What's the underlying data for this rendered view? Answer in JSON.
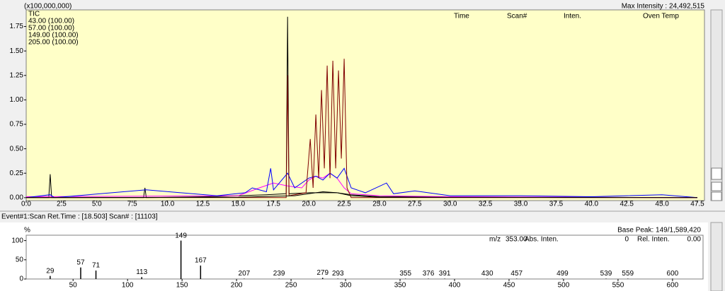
{
  "header": {
    "scale_note": "(x100,000,000)",
    "max_intensity": "Max Intensity : 24,492,515",
    "columns": [
      "Time",
      "Scan#",
      "Inten.",
      "Oven Temp"
    ]
  },
  "event": [
    "Event#1:Scan",
    "Ret.Time : [18.503]",
    "Scan# : [11103]"
  ],
  "spectrum_info": {
    "base_peak": "Base Peak: 149/1,589,420",
    "fields": [
      "m/z",
      "353.00",
      "Abs. Inten.",
      "0",
      "Rel. Inten.",
      "0.00"
    ]
  },
  "chart_data": [
    {
      "type": "line",
      "xlim": [
        0,
        48
      ],
      "ylim": [
        -0.03,
        1.92
      ],
      "xticks": [
        {
          "value": 0,
          "label": "0.0"
        },
        {
          "value": 2.5,
          "label": "2.5"
        },
        {
          "value": 5,
          "label": "5.0"
        },
        {
          "value": 7.5,
          "label": "7.5"
        },
        {
          "value": 10,
          "label": "10.0"
        },
        {
          "value": 12.5,
          "label": "12.5"
        },
        {
          "value": 15,
          "label": "15.0"
        },
        {
          "value": 17.5,
          "label": "17.5"
        },
        {
          "value": 20,
          "label": "20.0"
        },
        {
          "value": 22.5,
          "label": "22.5"
        },
        {
          "value": 25,
          "label": "25.0"
        },
        {
          "value": 27.5,
          "label": "27.5"
        },
        {
          "value": 30,
          "label": "30.0"
        },
        {
          "value": 32.5,
          "label": "32.5"
        },
        {
          "value": 35,
          "label": "35.0"
        },
        {
          "value": 37.5,
          "label": "37.5"
        },
        {
          "value": 40,
          "label": "40.0"
        },
        {
          "value": 42.5,
          "label": "42.5"
        },
        {
          "value": 45,
          "label": "45.0"
        },
        {
          "value": 47.5,
          "label": "47.5"
        }
      ],
      "yticks": [
        {
          "value": 0,
          "label": "0.00"
        },
        {
          "value": 0.25,
          "label": "0.25"
        },
        {
          "value": 0.5,
          "label": "0.50"
        },
        {
          "value": 0.75,
          "label": "0.75"
        },
        {
          "value": 1,
          "label": "1.00"
        },
        {
          "value": 1.25,
          "label": "1.25"
        },
        {
          "value": 1.5,
          "label": "1.50"
        },
        {
          "value": 1.75,
          "label": "1.75"
        }
      ],
      "series": [
        {
          "name": "TIC",
          "color": "#000000",
          "x": [
            0,
            1.6,
            1.7,
            1.8,
            8.3,
            8.4,
            8.5,
            13,
            15,
            17,
            18.4,
            18.5,
            18.6,
            20,
            22,
            23,
            25,
            47.5
          ],
          "values": [
            0,
            0,
            0.24,
            0,
            0,
            0.1,
            0,
            0.01,
            0.02,
            0.03,
            0.04,
            1.85,
            0.04,
            0.05,
            0.05,
            0.03,
            0.01,
            0
          ]
        },
        {
          "name": "43.00 (100.00)",
          "color": "#ff00ff",
          "x": [
            0,
            15,
            16.5,
            17.5,
            18.5,
            19.5,
            20,
            20.5,
            21,
            21.5,
            22,
            22.5,
            23,
            25,
            30,
            47.5
          ],
          "values": [
            0.01,
            0.02,
            0.1,
            0.15,
            0.12,
            0.1,
            0.18,
            0.22,
            0.2,
            0.25,
            0.2,
            0.1,
            0.04,
            0.02,
            0.01,
            0
          ]
        },
        {
          "name": "57.00 (100.00)",
          "color": "#0000ff",
          "x": [
            0,
            1.7,
            2,
            8.5,
            13.5,
            15.5,
            16,
            17,
            17.3,
            17.5,
            18.5,
            19,
            19.5,
            20,
            20.5,
            21,
            21.5,
            22,
            22.5,
            23,
            24,
            25.5,
            26,
            27.5,
            30,
            35,
            40,
            45,
            47.5
          ],
          "values": [
            0,
            0.03,
            0,
            0.08,
            0.02,
            0.05,
            0.1,
            0.06,
            0.3,
            0.08,
            0.25,
            0.1,
            0.15,
            0.2,
            0.22,
            0.18,
            0.25,
            0.2,
            0.3,
            0.1,
            0.05,
            0.15,
            0.04,
            0.07,
            0.02,
            0.02,
            0.01,
            0.03,
            0
          ]
        },
        {
          "name": "149.00 (100.00)",
          "color": "#800000",
          "x": [
            0,
            17,
            18.4,
            18.5,
            18.6,
            19.8,
            20.1,
            20.3,
            20.5,
            20.7,
            20.9,
            21.1,
            21.3,
            21.5,
            21.7,
            21.9,
            22.1,
            22.3,
            22.5,
            22.7,
            23,
            47.5
          ],
          "values": [
            0,
            0,
            0,
            1.25,
            0.02,
            0.05,
            0.6,
            0.1,
            0.85,
            0.2,
            1.1,
            0.3,
            1.35,
            0.2,
            1.4,
            0.3,
            1.3,
            0.4,
            1.42,
            0.1,
            0,
            0
          ]
        },
        {
          "name": "205.00 (100.00)",
          "color": "#000000",
          "x": [
            0,
            15,
            19,
            20,
            21,
            22,
            23,
            25,
            47.5
          ],
          "values": [
            0,
            0.005,
            0.02,
            0.04,
            0.06,
            0.05,
            0.02,
            0.005,
            0
          ]
        }
      ]
    },
    {
      "type": "stick",
      "y_label": "%",
      "color": "#000000",
      "label_color": "#2020c0",
      "xlim": [
        7,
        628
      ],
      "ylim": [
        0,
        114
      ],
      "xticks": [
        50,
        100,
        150,
        200,
        250,
        300,
        350,
        400,
        450,
        500,
        550,
        600
      ],
      "yticks": [
        0,
        50,
        100
      ],
      "x": [
        29,
        57,
        71,
        113,
        149,
        167,
        207,
        239,
        279,
        293,
        355,
        376,
        391,
        430,
        457,
        499,
        539,
        559,
        600
      ],
      "values": [
        8,
        30,
        22,
        5,
        100,
        35,
        1,
        1,
        3,
        1,
        1,
        1,
        1,
        1,
        1,
        1,
        1,
        1,
        1
      ]
    }
  ]
}
